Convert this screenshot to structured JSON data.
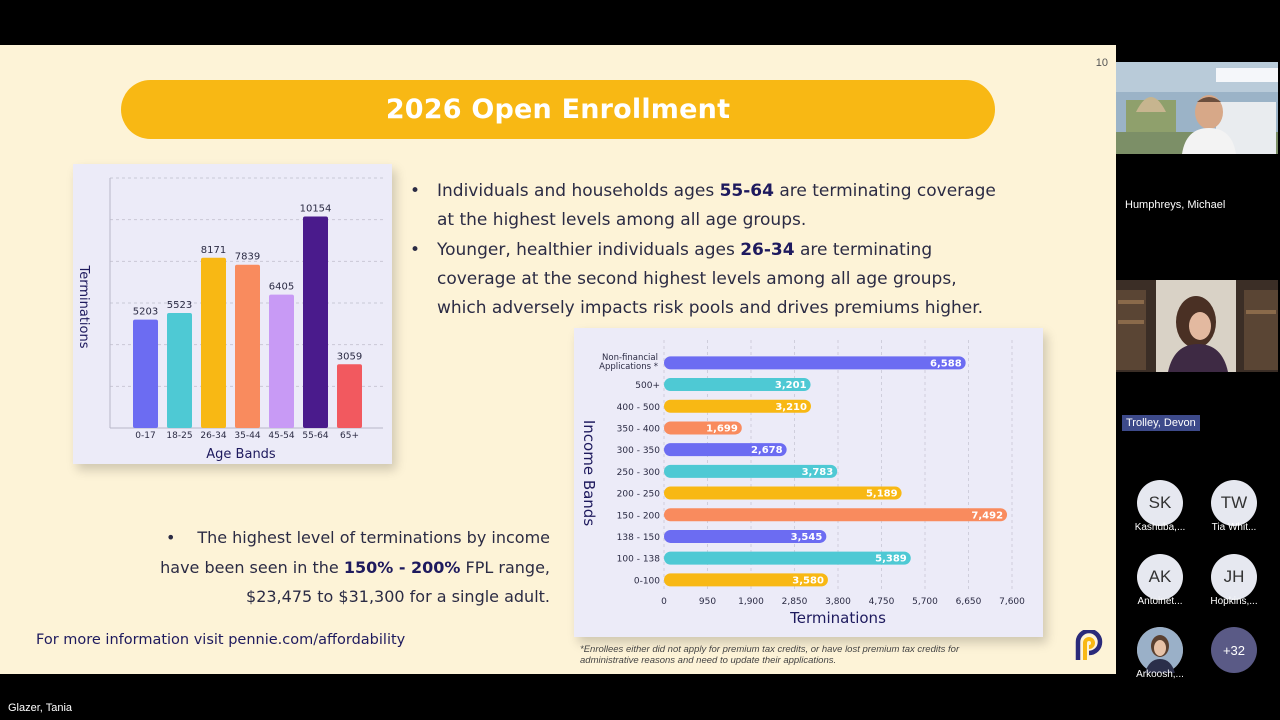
{
  "slide": {
    "number": "10",
    "title": "2026 Open Enrollment",
    "bullets": [
      {
        "pre": "Individuals and households ages ",
        "bold": "55-64",
        "post": " are terminating coverage at the highest levels among all age groups."
      },
      {
        "pre": "Younger, healthier individuals ages ",
        "bold": "26-34",
        "post": " are terminating coverage at the second highest levels among all age groups, which adversely impacts risk pools and drives premiums higher."
      }
    ],
    "income_bullet": {
      "pre": "The highest level of terminations by income have been seen in the ",
      "bold": "150% - 200%",
      "post": " FPL range, $23,475 to $31,300 for a single adult."
    },
    "more_info": "For more information visit pennie.com/affordability",
    "footnote": "*Enrollees either did not apply for premium tax credits, or have lost premium tax credits for administrative reasons and need to update their applications.",
    "bullet_glyph": "•"
  },
  "chart_data": [
    {
      "type": "bar",
      "categories": [
        "0-17",
        "18-25",
        "26-34",
        "35-44",
        "45-54",
        "55-64",
        "65+"
      ],
      "values": [
        5203,
        5523,
        8171,
        7839,
        6405,
        10154,
        3059
      ],
      "colors": [
        "#6c6cf2",
        "#4ec9d4",
        "#f8b814",
        "#f98b5e",
        "#c89af5",
        "#4a1b8c",
        "#f2595f"
      ],
      "xlabel": "Age Bands",
      "ylabel": "Terminations",
      "ylim": [
        0,
        12000
      ],
      "grid": true
    },
    {
      "type": "bar",
      "orientation": "horizontal",
      "categories": [
        "Non-financial Applications *",
        "500+",
        "400 - 500",
        "350 - 400",
        "300 - 350",
        "250 - 300",
        "200 - 250",
        "150 - 200",
        "138 - 150",
        "100 - 138",
        "0-100"
      ],
      "values": [
        6588,
        3201,
        3210,
        1699,
        2678,
        3783,
        5189,
        7492,
        3545,
        5389,
        3580
      ],
      "value_labels": [
        "6,588",
        "3,201",
        "3,210",
        "1,699",
        "2,678",
        "3,783",
        "5,189",
        "7,492",
        "3,545",
        "5,389",
        "3,580"
      ],
      "colors": [
        "#6c6cf2",
        "#4ec9d4",
        "#f8b814",
        "#f98b5e",
        "#6c6cf2",
        "#4ec9d4",
        "#f8b814",
        "#f98b5e",
        "#6c6cf2",
        "#4ec9d4",
        "#f8b814"
      ],
      "ticks": [
        "0",
        "950",
        "1,900",
        "2,850",
        "3,800",
        "4,750",
        "5,700",
        "6,650",
        "7,600"
      ],
      "xlabel": "Terminations",
      "ylabel": "Income Bands",
      "xlim": [
        0,
        7600
      ],
      "grid": true
    }
  ],
  "meeting": {
    "participants": [
      {
        "name": "Humphreys, Michael"
      },
      {
        "name": "Trolley, Devon"
      }
    ],
    "avatars": [
      {
        "initials": "SK",
        "name": "Kashuba,..."
      },
      {
        "initials": "TW",
        "name": "Tia Whit..."
      },
      {
        "initials": "AK",
        "name": "Antoinet..."
      },
      {
        "initials": "JH",
        "name": "Hopkins,..."
      },
      {
        "initials": "",
        "name": "Arkoosh,..."
      },
      {
        "initials": "+32",
        "name": ""
      }
    ],
    "presenter": "Glazer, Tania"
  }
}
